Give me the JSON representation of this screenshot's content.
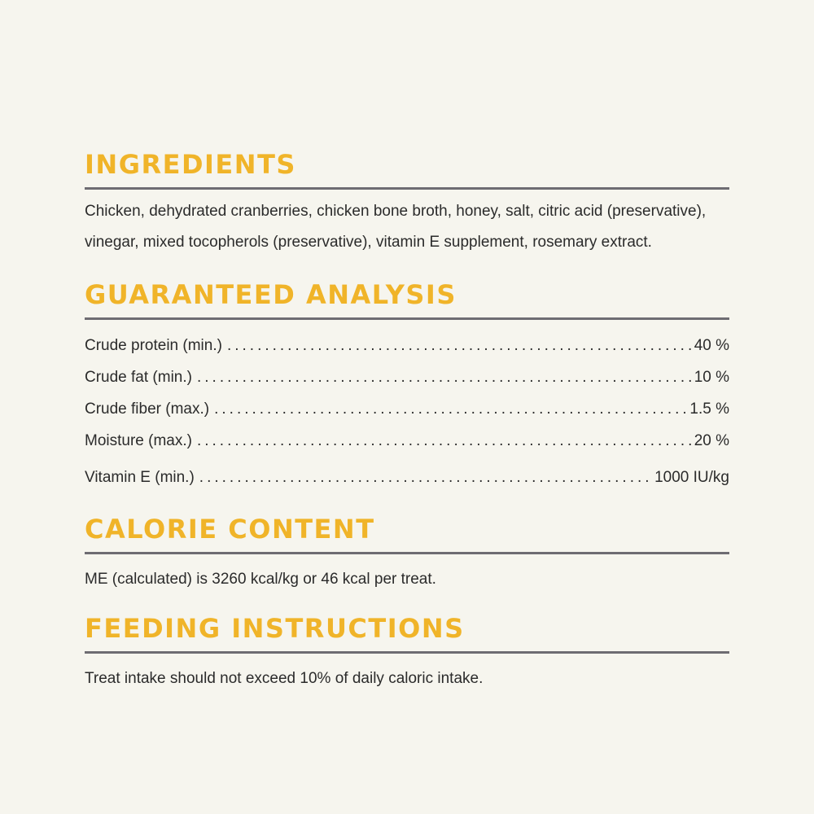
{
  "ingredients": {
    "heading": "INGREDIENTS",
    "text": "Chicken, dehydrated cranberries, chicken bone broth, honey, salt, citric acid (preservative), vinegar, mixed tocopherols (preservative), vitamin E supplement, rosemary extract."
  },
  "guaranteed_analysis": {
    "heading": "GUARANTEED ANALYSIS",
    "rows": [
      {
        "label": "Crude protein (min.)",
        "value": "40 %"
      },
      {
        "label": "Crude fat (min.)",
        "value": "10 %"
      },
      {
        "label": "Crude fiber (max.)",
        "value": "1.5 %"
      },
      {
        "label": "Moisture (max.)",
        "value": "20 %"
      },
      {
        "label": "Vitamin E (min.)",
        "value": "1000 IU/kg"
      }
    ]
  },
  "calorie_content": {
    "heading": "CALORIE CONTENT",
    "text": "ME (calculated) is 3260 kcal/kg or 46 kcal per treat."
  },
  "feeding_instructions": {
    "heading": "FEEDING INSTRUCTIONS",
    "text": "Treat intake should not exceed 10% of daily caloric intake."
  },
  "colors": {
    "background": "#f6f5ee",
    "heading": "#f0b429",
    "rule": "#6e6c72",
    "text": "#2b2b2b"
  }
}
